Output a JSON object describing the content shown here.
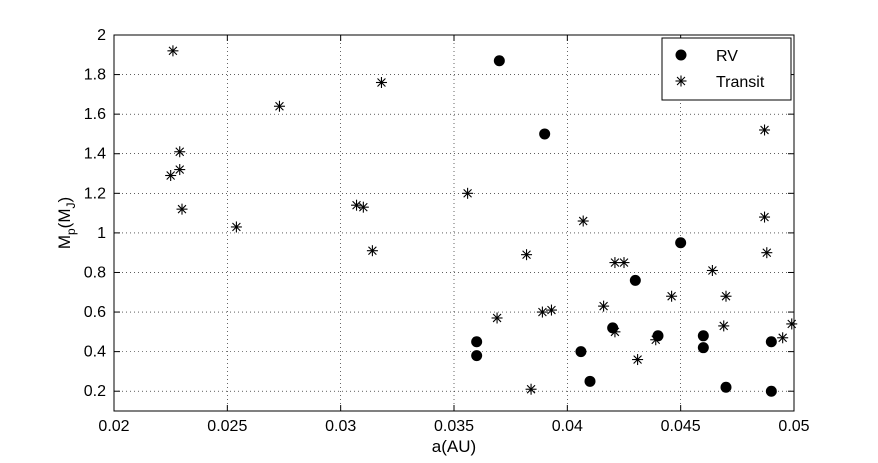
{
  "chart_data": {
    "type": "scatter",
    "xlabel": "a(AU)",
    "ylabel_main": "M",
    "ylabel_sub1": "p",
    "ylabel_mid": "(M",
    "ylabel_sub2": "J",
    "ylabel_end": ")",
    "xlim": [
      0.02,
      0.05
    ],
    "ylim": [
      0.1,
      2.0
    ],
    "xticks": [
      0.02,
      0.025,
      0.03,
      0.035,
      0.04,
      0.045,
      0.05
    ],
    "xtick_labels": [
      "0.02",
      "0.025",
      "0.03",
      "0.035",
      "0.04",
      "0.045",
      "0.05"
    ],
    "yticks": [
      0.2,
      0.4,
      0.6,
      0.8,
      1.0,
      1.2,
      1.4,
      1.6,
      1.8,
      2.0
    ],
    "ytick_labels": [
      "0.2",
      "0.4",
      "0.6",
      "0.8",
      "1",
      "1.2",
      "1.4",
      "1.6",
      "1.8",
      "2"
    ],
    "grid": true,
    "legend_position": "top-right",
    "series": [
      {
        "name": "RV",
        "marker": "filled-circle",
        "color": "#000000",
        "points": [
          [
            0.037,
            1.87
          ],
          [
            0.039,
            1.5
          ],
          [
            0.036,
            0.45
          ],
          [
            0.036,
            0.38
          ],
          [
            0.0406,
            0.4
          ],
          [
            0.041,
            0.25
          ],
          [
            0.042,
            0.52
          ],
          [
            0.043,
            0.76
          ],
          [
            0.044,
            0.48
          ],
          [
            0.045,
            0.95
          ],
          [
            0.046,
            0.48
          ],
          [
            0.046,
            0.42
          ],
          [
            0.047,
            0.22
          ],
          [
            0.049,
            0.45
          ],
          [
            0.049,
            0.2
          ]
        ]
      },
      {
        "name": "Transit",
        "marker": "asterisk",
        "color": "#000000",
        "points": [
          [
            0.0226,
            1.92
          ],
          [
            0.0229,
            1.41
          ],
          [
            0.0229,
            1.32
          ],
          [
            0.0225,
            1.29
          ],
          [
            0.023,
            1.12
          ],
          [
            0.0254,
            1.03
          ],
          [
            0.0273,
            1.64
          ],
          [
            0.0318,
            1.76
          ],
          [
            0.0307,
            1.14
          ],
          [
            0.031,
            1.13
          ],
          [
            0.0314,
            0.91
          ],
          [
            0.0356,
            1.2
          ],
          [
            0.0369,
            0.57
          ],
          [
            0.0382,
            0.89
          ],
          [
            0.0389,
            0.6
          ],
          [
            0.0393,
            0.61
          ],
          [
            0.0384,
            0.21
          ],
          [
            0.0407,
            1.06
          ],
          [
            0.0416,
            0.63
          ],
          [
            0.0421,
            0.85
          ],
          [
            0.0425,
            0.85
          ],
          [
            0.0421,
            0.5
          ],
          [
            0.0431,
            0.36
          ],
          [
            0.0439,
            0.46
          ],
          [
            0.0446,
            0.68
          ],
          [
            0.0464,
            0.81
          ],
          [
            0.047,
            0.68
          ],
          [
            0.0469,
            0.53
          ],
          [
            0.0487,
            1.52
          ],
          [
            0.0487,
            1.08
          ],
          [
            0.0488,
            0.9
          ],
          [
            0.0495,
            0.47
          ],
          [
            0.0499,
            0.54
          ]
        ]
      }
    ]
  }
}
